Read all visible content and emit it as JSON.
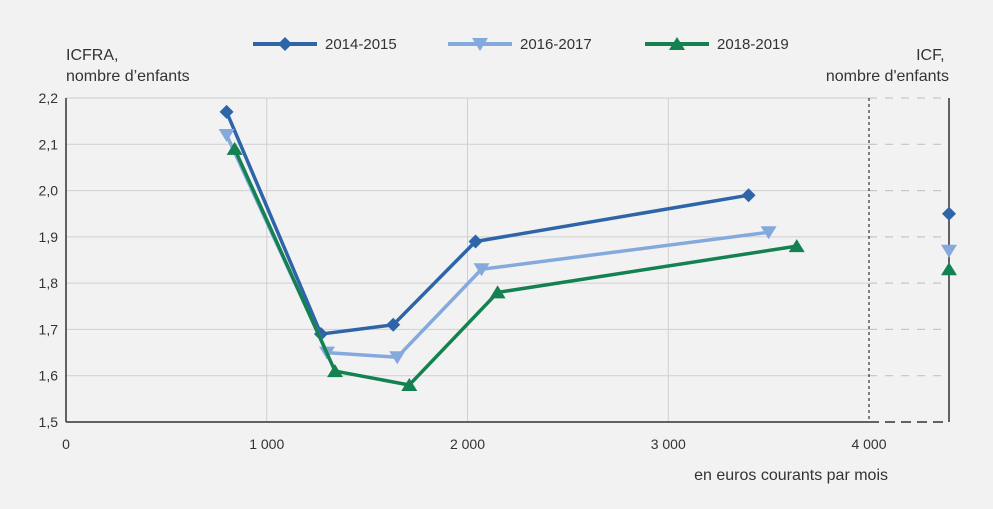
{
  "chart_data": {
    "type": "line",
    "left_axis_title": [
      "ICFRA,",
      "nombre d’enfants"
    ],
    "right_axis_title": [
      "ICF,",
      "nombre d'enfants"
    ],
    "xlabel": "en euros courants par mois",
    "xlim": [
      0,
      4000
    ],
    "ylim": [
      1.5,
      2.2
    ],
    "x_ticks": [
      "0",
      "1 000",
      "2 000",
      "3 000",
      "4 000"
    ],
    "y_ticks": [
      "1,5",
      "1,6",
      "1,7",
      "1,8",
      "1,9",
      "2,0",
      "2,1",
      "2,2"
    ],
    "grid": true,
    "legend_position": "top",
    "series": [
      {
        "name": "2014-2015",
        "color": "#2e64a8",
        "marker": "diamond",
        "x": [
          800,
          1270,
          1630,
          2040,
          3400
        ],
        "y": [
          2.17,
          1.69,
          1.71,
          1.89,
          1.99
        ],
        "icf": 1.95
      },
      {
        "name": "2016-2017",
        "color": "#84a9dc",
        "marker": "triangle-down",
        "x": [
          800,
          1300,
          1650,
          2070,
          3500
        ],
        "y": [
          2.12,
          1.65,
          1.64,
          1.83,
          1.91
        ],
        "icf": 1.87
      },
      {
        "name": "2018-2019",
        "color": "#138150",
        "marker": "triangle-up",
        "x": [
          840,
          1340,
          1710,
          2150,
          3640
        ],
        "y": [
          2.09,
          1.61,
          1.58,
          1.78,
          1.88
        ],
        "icf": 1.83
      }
    ]
  }
}
